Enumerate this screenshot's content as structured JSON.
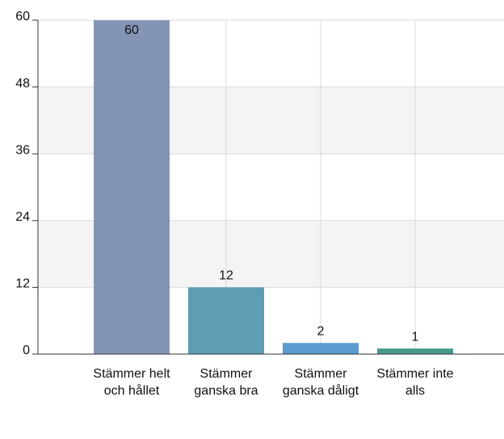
{
  "chart_data": {
    "type": "bar",
    "categories": [
      "Stämmer helt och hållet",
      "Stämmer ganska bra",
      "Stämmer ganska dåligt",
      "Stämmer inte alls"
    ],
    "values": [
      60,
      12,
      2,
      1
    ],
    "colors": [
      "#8494b5",
      "#5f9db4",
      "#5a9acf",
      "#479a8b"
    ],
    "ylim": [
      0,
      60
    ],
    "yticks": [
      0,
      12,
      24,
      36,
      48,
      60
    ],
    "grid": true
  }
}
